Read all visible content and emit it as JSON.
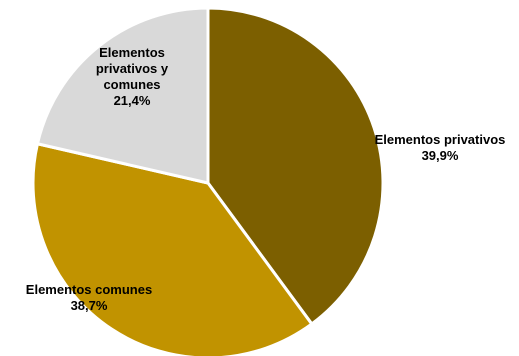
{
  "chart_data": {
    "type": "pie",
    "start_angle_deg": 0,
    "direction": "clockwise",
    "slices": [
      {
        "label_lines": [
          "Elementos privativos"
        ],
        "value": 39.9,
        "value_text": "39,9%",
        "color": "#7c5f00"
      },
      {
        "label_lines": [
          "Elementos comunes"
        ],
        "value": 38.7,
        "value_text": "38,7%",
        "color": "#c19300"
      },
      {
        "label_lines": [
          "Elementos",
          "privativos y",
          "comunes"
        ],
        "value": 21.4,
        "value_text": "21,4%",
        "color": "#d9d9d9"
      }
    ],
    "slice_border_color": "#ffffff",
    "legend": "none"
  }
}
